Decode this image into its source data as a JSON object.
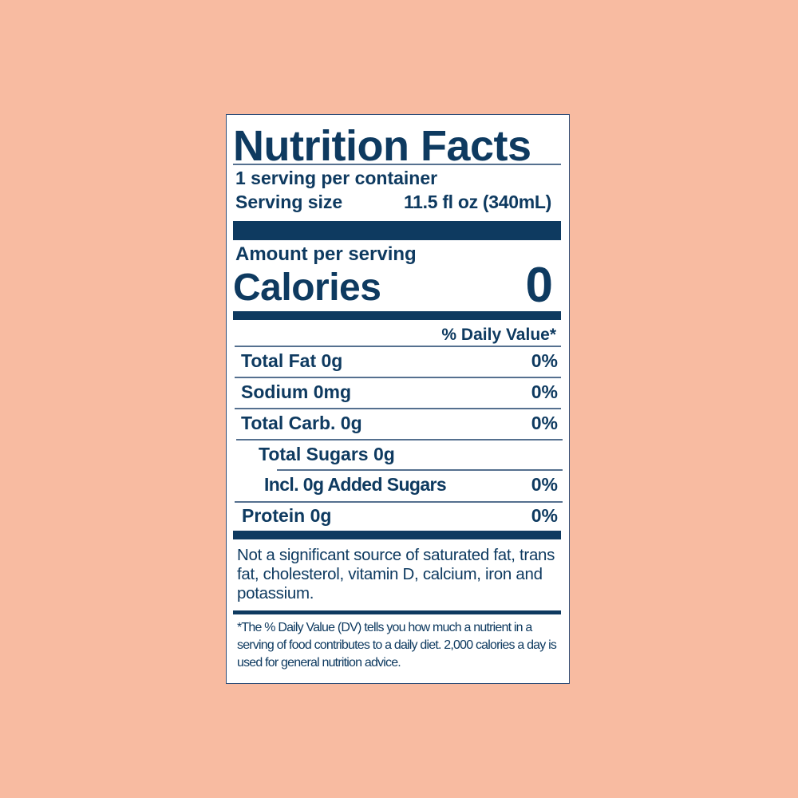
{
  "label": {
    "title": "Nutrition Facts",
    "servings_per_container": "1 serving per container",
    "serving_size_label": "Serving size",
    "serving_size_value": "11.5 fl oz (340mL)",
    "amount_per_serving": "Amount per serving",
    "calories_label": "Calories",
    "calories_value": "0",
    "daily_value_header": "% Daily Value*",
    "nutrients": [
      {
        "name": "Total Fat 0g",
        "dv": "0%"
      },
      {
        "name": "Sodium 0mg",
        "dv": "0%"
      },
      {
        "name": "Total Carb. 0g",
        "dv": "0%"
      },
      {
        "name": "Total Sugars 0g",
        "dv": ""
      },
      {
        "name": "Incl. 0g Added Sugars",
        "dv": "0%"
      },
      {
        "name": "Protein 0g",
        "dv": "0%"
      }
    ],
    "not_significant": "Not a significant source of saturated fat, trans fat, cholesterol, vitamin D, calcium, iron and potassium.",
    "footnote": "*The % Daily Value (DV) tells you how much a nutrient in a serving of food contributes to a daily diet. 2,000 calories a day is used for general nutrition advice."
  },
  "colors": {
    "background": "#f8bba1",
    "ink": "#0e3a60",
    "panel": "#ffffff"
  }
}
